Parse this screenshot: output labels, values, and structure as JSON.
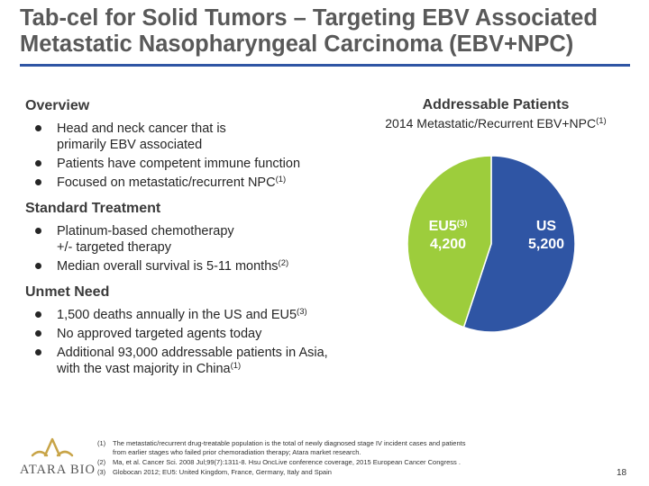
{
  "title": {
    "line1": "Tab-cel for Solid Tumors – Targeting EBV Associated",
    "line2": "Metastatic Nasopharyngeal Carcinoma (EBV+NPC)"
  },
  "sections": {
    "overview": {
      "heading": "Overview",
      "b1_l1": "Head and neck cancer that is",
      "b1_l2": "primarily EBV associated",
      "b2": "Patients have competent immune function",
      "b3": "Focused on metastatic/recurrent NPC",
      "b3_sup": "(1)"
    },
    "standard": {
      "heading": "Standard Treatment",
      "b1_l1": "Platinum-based chemotherapy",
      "b1_l2": "+/- targeted therapy",
      "b2": "Median overall survival is 5-11 months",
      "b2_sup": "(2)"
    },
    "unmet": {
      "heading": "Unmet Need",
      "b1": "1,500 deaths annually in the US and EU5",
      "b1_sup": "(3)",
      "b2": "No approved targeted agents today",
      "b3_l1": "Additional 93,000 addressable patients in Asia,",
      "b3_l2": "with the vast majority in China",
      "b3_sup": "(1)"
    }
  },
  "chart_data": {
    "type": "pie",
    "title": "Addressable Patients",
    "subtitle": "2014 Metastatic/Recurrent EBV+NPC",
    "subtitle_sup": "(1)",
    "slices": [
      {
        "label": "US",
        "label_sup": "",
        "value": 5200,
        "value_text": "5,200",
        "color": "#2f55a4"
      },
      {
        "label": "EU5",
        "label_sup": "(3)",
        "value": 4200,
        "value_text": "4,200",
        "color": "#9dcd3c"
      }
    ]
  },
  "logo": {
    "text": "ATARA BIO",
    "color": "#c8a447"
  },
  "footnotes": [
    {
      "num": "(1)",
      "l1": "The metastatic/recurrent drug-treatable population is the total of newly diagnosed stage IV incident cases and patients",
      "l2": "from earlier stages who failed prior chemoradiation therapy; Atara market research."
    },
    {
      "num": "(2)",
      "l1": "Ma, et al. Cancer Sci. 2008 Jul;99(7):1311-8. Hsu OncLive conference coverage, 2015 European Cancer Congress .",
      "l2": ""
    },
    {
      "num": "(3)",
      "l1": "Globocan 2012; EU5: United Kingdom, France, Germany, Italy and Spain",
      "l2": ""
    }
  ],
  "page_number": "18"
}
